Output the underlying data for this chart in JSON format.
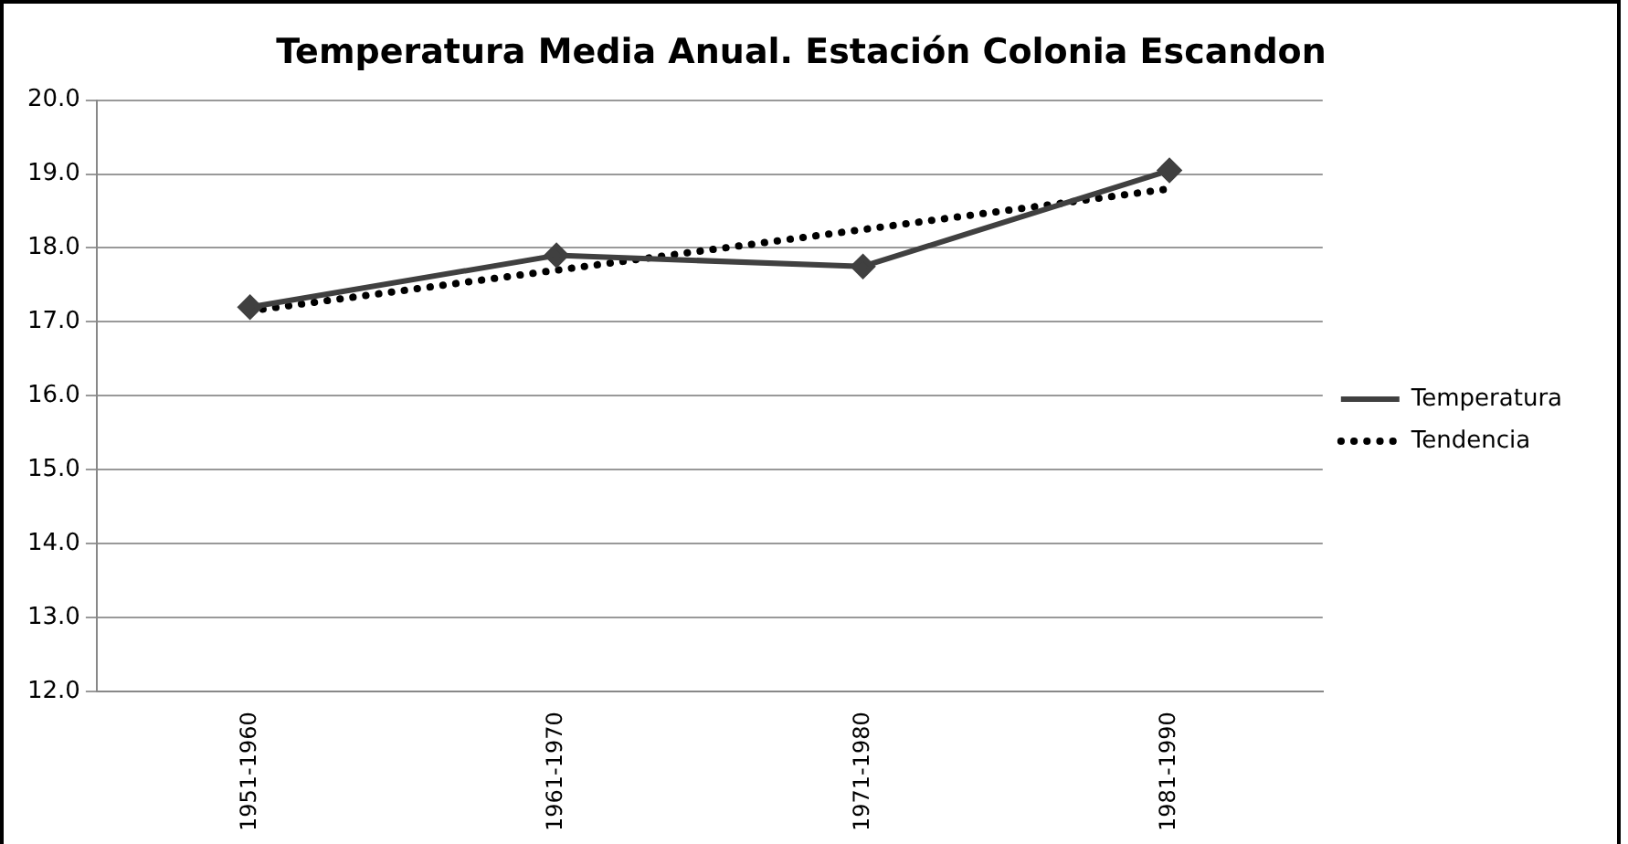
{
  "chart_data": {
    "type": "line",
    "title": "Temperatura Media Anual. Estación Colonia Escandon",
    "categories": [
      "1951-1960",
      "1961-1970",
      "1971-1980",
      "1981-1990"
    ],
    "series": [
      {
        "name": "Temperatura",
        "color": "#404040",
        "values": [
          17.2,
          17.9,
          17.75,
          19.05
        ],
        "marker": "diamond",
        "line_style": "solid"
      },
      {
        "name": "Tendencia",
        "color": "#000000",
        "values": [
          17.15,
          17.7,
          18.25,
          18.8
        ],
        "marker": "none",
        "line_style": "dotted"
      }
    ],
    "ylim": [
      12,
      20
    ],
    "yticks": [
      {
        "value": 12,
        "label": "12.0"
      },
      {
        "value": 13,
        "label": "13.0"
      },
      {
        "value": 14,
        "label": "14.0"
      },
      {
        "value": 15,
        "label": "15.0"
      },
      {
        "value": 16,
        "label": "16.0"
      },
      {
        "value": 17,
        "label": "17.0"
      },
      {
        "value": 18,
        "label": "18.0"
      },
      {
        "value": 19,
        "label": "19.0"
      },
      {
        "value": 20,
        "label": "20.0"
      }
    ],
    "grid": "y",
    "legend": "right"
  }
}
